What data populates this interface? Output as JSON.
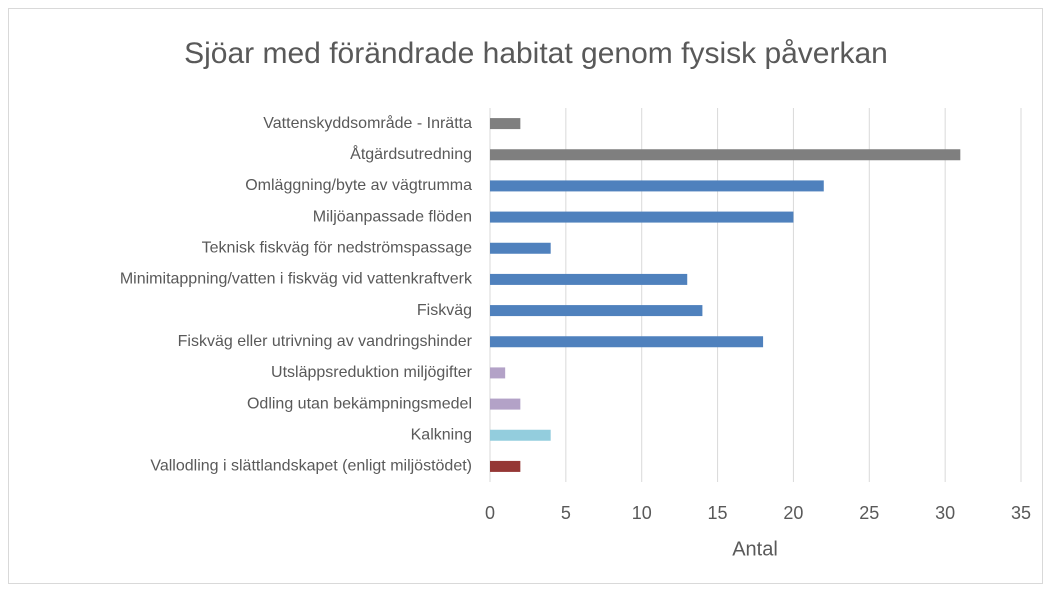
{
  "chart_data": {
    "type": "bar",
    "orientation": "horizontal",
    "title": "Sjöar med förändrade habitat genom fysisk påverkan",
    "x_label": "Antal",
    "categories": [
      "Vattenskyddsområde - Inrätta",
      "Åtgärdsutredning",
      "Omläggning/byte av vägtrumma",
      "Miljöanpassade flöden",
      "Teknisk fiskväg för nedströmspassage",
      "Minimitappning/vatten i fiskväg vid vattenkraftverk",
      "Fiskväg",
      "Fiskväg eller utrivning av vandringshinder",
      "Utsläppsreduktion miljögifter",
      "Odling utan bekämpningsmedel",
      "Kalkning",
      "Vallodling i slättlandskapet (enligt miljöstödet)"
    ],
    "values": [
      2,
      31,
      22,
      20,
      4,
      13,
      14,
      18,
      1,
      2,
      4,
      2
    ],
    "colors": [
      "#7f7f7f",
      "#7f7f7f",
      "#4f81bd",
      "#4f81bd",
      "#4f81bd",
      "#4f81bd",
      "#4f81bd",
      "#4f81bd",
      "#b3a2c7",
      "#b3a2c7",
      "#93cddd",
      "#953735"
    ],
    "xlim": [
      0,
      35
    ],
    "xticks": [
      0,
      5,
      10,
      15,
      20,
      25,
      30,
      35
    ],
    "grid": true
  }
}
